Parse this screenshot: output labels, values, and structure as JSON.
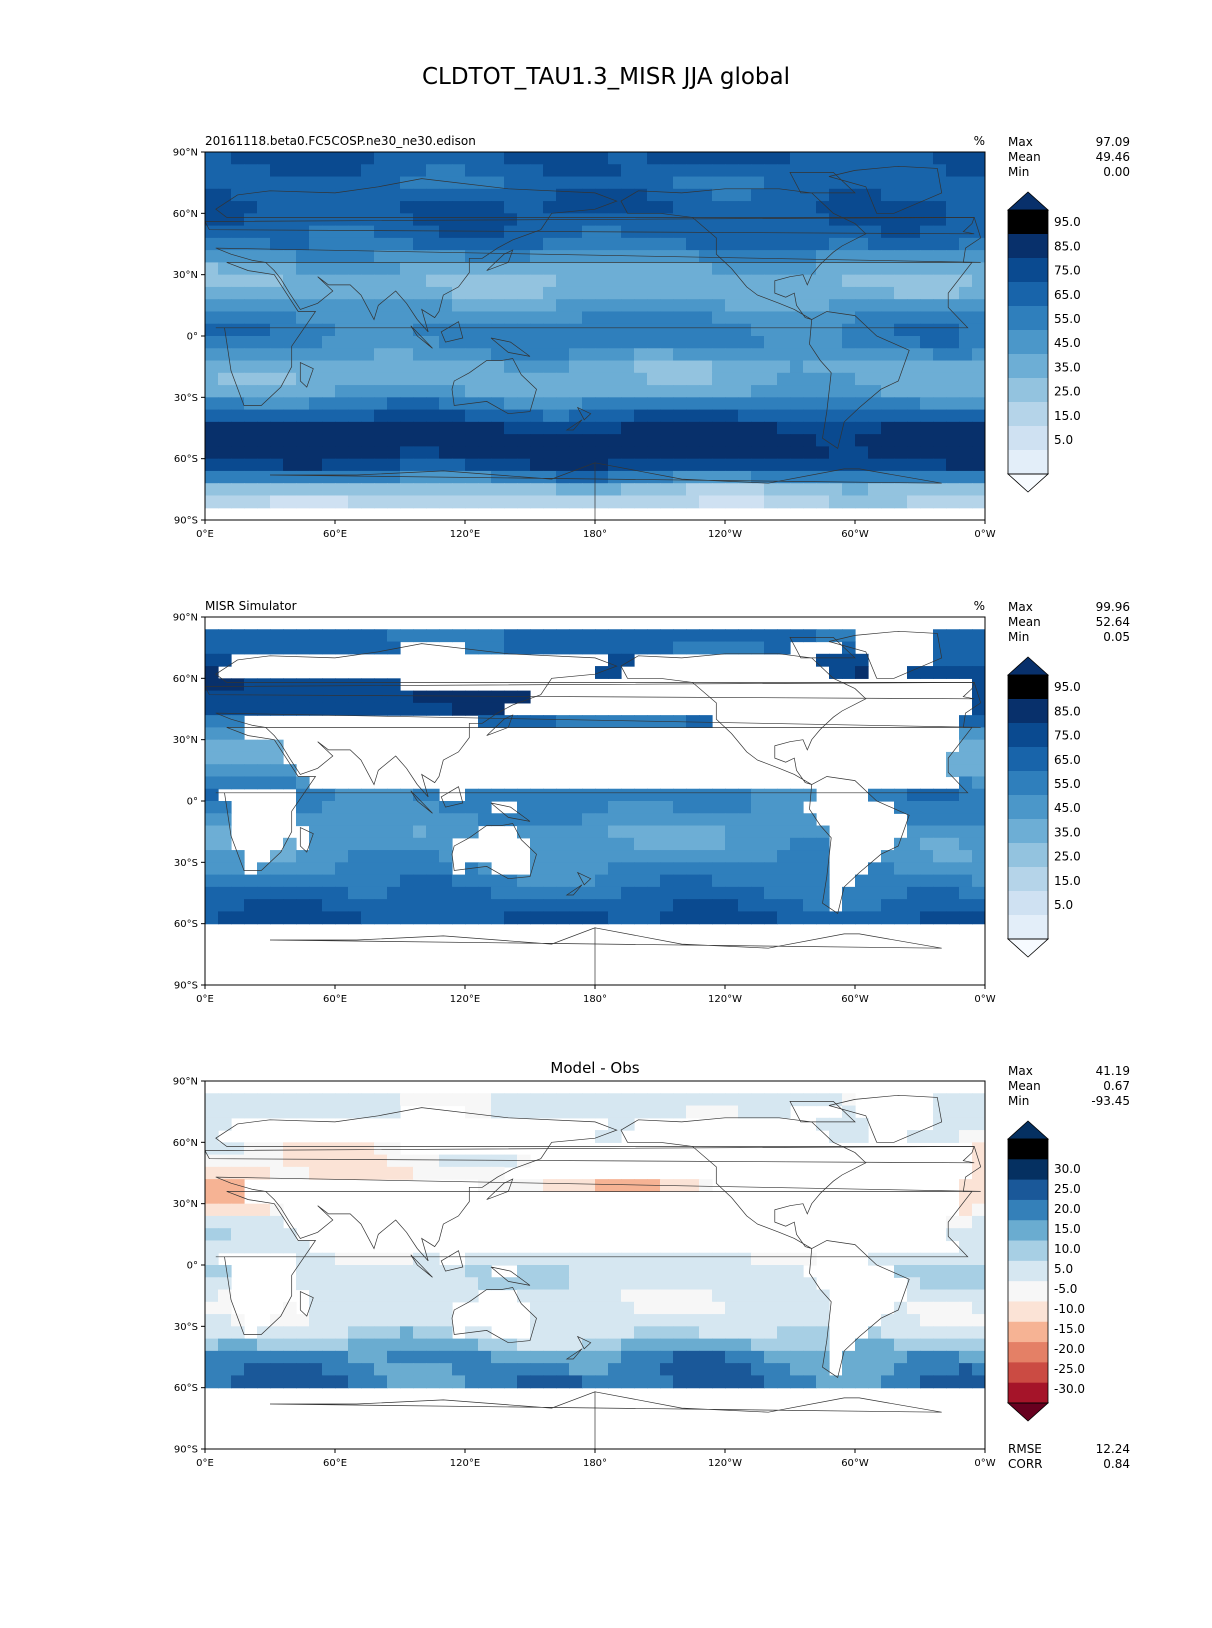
{
  "figure": {
    "title": "CLDTOT_TAU1.3_MISR JJA global"
  },
  "axes": {
    "xticks": [
      "0°E",
      "60°E",
      "120°E",
      "180°",
      "120°W",
      "60°W",
      "0°W"
    ],
    "yticks": [
      "90°N",
      "60°N",
      "30°N",
      "0°",
      "30°S",
      "60°S",
      "90°S"
    ]
  },
  "stat_labels": {
    "max": "Max",
    "mean": "Mean",
    "min": "Min",
    "rmse": "RMSE",
    "corr": "CORR"
  },
  "colors": {
    "seq_palette": [
      "#f7fbff",
      "#e3eef9",
      "#cfe1f2",
      "#b5d4e9",
      "#93c3df",
      "#6daed5",
      "#4b97c9",
      "#2f7fbc",
      "#1864aa",
      "#0a4a90",
      "#08306b"
    ],
    "div_palette": [
      "#67001f",
      "#a51429",
      "#cb4b43",
      "#e48066",
      "#f6b394",
      "#fbe3d6",
      "#f7f7f7",
      "#d6e7f1",
      "#a7cfe4",
      "#6aacd0",
      "#3480b9",
      "#1a5899",
      "#053061"
    ],
    "land_fill": "#ffffff",
    "coast": "#333333"
  },
  "chart_data": [
    {
      "type": "heatmap",
      "panel": "test",
      "title": "20161118.beta0.FC5COSP.ne30_ne30.edison",
      "units": "%",
      "map_projection": "PlateCarree",
      "xlim": [
        0,
        360
      ],
      "ylim": [
        -90,
        90
      ],
      "stats": {
        "max": "97.09",
        "mean": "49.46",
        "min": "0.00"
      },
      "colorbar": {
        "levels": [
          0,
          5,
          10,
          20,
          30,
          40,
          50,
          60,
          70,
          80,
          90,
          100
        ],
        "tick_labels": [
          "95.0",
          "85.0",
          "75.0",
          "65.0",
          "55.0",
          "45.0",
          "35.0",
          "25.0",
          "15.0",
          "5.0"
        ],
        "extend": "both"
      },
      "zonal_mean_profile": {
        "lat": [
          -85,
          -75,
          -65,
          -55,
          -45,
          -35,
          -25,
          -15,
          -5,
          5,
          15,
          25,
          35,
          45,
          55,
          65,
          75,
          85
        ],
        "value": [
          8,
          25,
          72,
          90,
          82,
          58,
          35,
          35,
          52,
          55,
          42,
          28,
          40,
          60,
          68,
          70,
          62,
          70
        ]
      },
      "masked_over_land": false,
      "mask_south_of": -82
    },
    {
      "type": "heatmap",
      "panel": "reference",
      "title": "MISR Simulator",
      "units": "%",
      "map_projection": "PlateCarree",
      "xlim": [
        0,
        360
      ],
      "ylim": [
        -90,
        90
      ],
      "stats": {
        "max": "99.96",
        "mean": "52.64",
        "min": "0.05"
      },
      "colorbar": {
        "levels": [
          0,
          5,
          10,
          20,
          30,
          40,
          50,
          60,
          70,
          80,
          90,
          100
        ],
        "tick_labels": [
          "95.0",
          "85.0",
          "75.0",
          "65.0",
          "55.0",
          "45.0",
          "35.0",
          "25.0",
          "15.0",
          "5.0"
        ],
        "extend": "both"
      },
      "zonal_mean_profile": {
        "lat": [
          -60,
          -55,
          -45,
          -35,
          -25,
          -15,
          -5,
          5,
          15,
          25,
          35,
          45,
          55,
          65,
          75,
          82
        ],
        "value": [
          72,
          68,
          60,
          52,
          45,
          42,
          50,
          55,
          40,
          35,
          52,
          75,
          80,
          72,
          62,
          62
        ]
      },
      "masked_over_land": true,
      "mask_south_of": -60,
      "mask_north_of": 82
    },
    {
      "type": "heatmap",
      "panel": "difference",
      "title": "Model - Obs",
      "units": "",
      "map_projection": "PlateCarree",
      "xlim": [
        0,
        360
      ],
      "ylim": [
        -90,
        90
      ],
      "stats": {
        "max": "41.19",
        "mean": "0.67",
        "min": "-93.45"
      },
      "rmse": "12.24",
      "corr": "0.84",
      "colorbar": {
        "levels": [
          -35,
          -30,
          -25,
          -20,
          -15,
          -10,
          -5,
          5,
          10,
          15,
          20,
          25,
          30,
          35
        ],
        "tick_labels": [
          "30.0",
          "25.0",
          "20.0",
          "15.0",
          "10.0",
          "5.0",
          "-5.0",
          "-10.0",
          "-15.0",
          "-20.0",
          "-25.0",
          "-30.0"
        ],
        "extend": "both"
      },
      "zonal_mean_profile": {
        "lat": [
          -60,
          -55,
          -45,
          -35,
          -25,
          -15,
          -5,
          5,
          15,
          25,
          35,
          45,
          55,
          65,
          75,
          82
        ],
        "value": [
          20,
          18,
          15,
          6,
          -3,
          -2,
          5,
          -4,
          2,
          -8,
          -12,
          -10,
          -8,
          -3,
          -2,
          -2
        ]
      },
      "masked_over_land": true,
      "mask_south_of": -60,
      "mask_north_of": 82
    }
  ]
}
